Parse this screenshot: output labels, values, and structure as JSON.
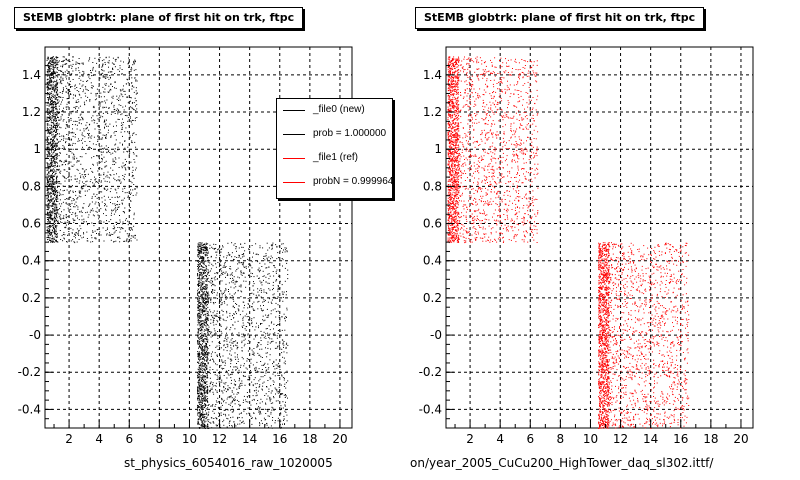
{
  "chart_data": [
    {
      "type": "scatter",
      "title": "StEMB globtrk: plane of first hit on trk, ftpc",
      "xlabel": "st_physics_6054016_raw_1020005",
      "ylabel": "",
      "xlim": [
        0.4,
        20.8
      ],
      "ylim": [
        -0.5,
        1.55
      ],
      "x_ticks": [
        "2",
        "4",
        "6",
        "8",
        "10",
        "12",
        "14",
        "16",
        "18",
        "20"
      ],
      "y_ticks": [
        "-0.4",
        "-0.2",
        "-0",
        "0.2",
        "0.4",
        "0.6",
        "0.8",
        "1",
        "1.2",
        "1.4"
      ],
      "grid": true,
      "color": "#000000",
      "clusters": [
        {
          "x_range": [
            0.5,
            6.5
          ],
          "y_range": [
            0.5,
            1.5
          ]
        },
        {
          "x_range": [
            10.5,
            16.5
          ],
          "y_range": [
            -0.5,
            0.5
          ]
        }
      ],
      "legend": {
        "placement": "top-right",
        "entries": [
          {
            "label": "_file0 (new)",
            "color": "#000000"
          },
          {
            "label": "prob = 1.000000",
            "color": "#000000"
          },
          {
            "label": "_file1 (ref)",
            "color": "#ff0000"
          },
          {
            "label": "probN = 0.999964",
            "color": "#ff0000"
          }
        ]
      }
    },
    {
      "type": "scatter",
      "title": "StEMB globtrk: plane of first hit on trk, ftpc",
      "xlabel": "on/year_2005_CuCu200_HighTower_daq_sl302.ittf/",
      "ylabel": "",
      "xlim": [
        0.4,
        20.8
      ],
      "ylim": [
        -0.5,
        1.55
      ],
      "x_ticks": [
        "2",
        "4",
        "6",
        "8",
        "10",
        "12",
        "14",
        "16",
        "18",
        "20"
      ],
      "y_ticks": [
        "-0.4",
        "-0.2",
        "-0",
        "0.2",
        "0.4",
        "0.6",
        "0.8",
        "1",
        "1.2",
        "1.4"
      ],
      "grid": true,
      "color": "#ff0000",
      "clusters": [
        {
          "x_range": [
            0.5,
            6.5
          ],
          "y_range": [
            0.5,
            1.5
          ]
        },
        {
          "x_range": [
            10.5,
            16.5
          ],
          "y_range": [
            -0.5,
            0.5
          ]
        }
      ]
    }
  ]
}
